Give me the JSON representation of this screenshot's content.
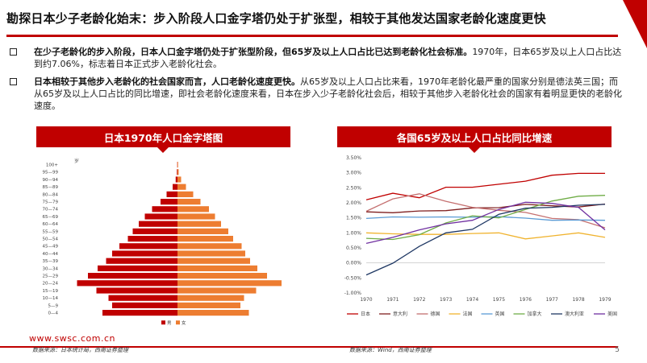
{
  "slide": {
    "title": "勘探日本少子老龄化始末：步入阶段人口金字塔仍处于扩张型，相较于其他发达国家老龄化速度更快",
    "bullets": [
      {
        "bold": "在少子老龄化的步入阶段，日本人口金字塔仍处于扩张型阶段，但65岁及以上人口占比已达到老龄化社会标准。",
        "text": "1970年，日本65岁及以上人口占比达到约7.06%，标志着日本正式步入老龄化社会。"
      },
      {
        "bold": "日本相较于其他步入老龄化的社会国家而言，人口老龄化速度更快。",
        "text": "从65岁及以上人口占比来看，1970年老龄化最严重的国家分别是德法英三国；而从65岁及以上人口占比的同比增速，即社会老龄化速度来看，日本在步入少子老龄化社会后，相较于其他步入老龄化社会的国家有着明显更快的老龄化速度。"
      }
    ],
    "page_number": "5",
    "footer_url": "www.swsc.com.cn"
  },
  "left_panel": {
    "title": "日本1970年人口金字塔图",
    "source": "数据来源：日本统计局，西南证券整理"
  },
  "right_panel": {
    "title": "各国65岁及以上人口占比同比增速",
    "source": "数据来源：Wind，西南证券整理"
  },
  "chart_data": [
    {
      "type": "bar",
      "subtype": "population-pyramid",
      "unit_label": "岁",
      "categories": [
        "100+",
        "95—99",
        "90—94",
        "85—89",
        "80—84",
        "75—79",
        "70—74",
        "65—69",
        "60—64",
        "55—59",
        "50—54",
        "45—49",
        "40—44",
        "35—39",
        "30—34",
        "25—29",
        "20—24",
        "15—19",
        "10—14",
        "5—9",
        "0—4"
      ],
      "series": [
        {
          "name": "男",
          "color": "#c00000",
          "values": [
            0.02,
            0.05,
            0.15,
            0.4,
            0.9,
            1.4,
            2.1,
            2.7,
            3.2,
            3.7,
            4.1,
            4.8,
            5.4,
            5.9,
            6.6,
            7.4,
            8.3,
            6.7,
            5.7,
            5.4,
            6.2
          ]
        },
        {
          "name": "女",
          "color": "#ed7d31",
          "values": [
            0.05,
            0.1,
            0.3,
            0.7,
            1.3,
            1.9,
            2.6,
            3.1,
            3.6,
            4.2,
            4.6,
            5.3,
            5.6,
            6.0,
            6.6,
            7.4,
            8.6,
            6.5,
            5.5,
            5.2,
            5.9
          ]
        }
      ]
    },
    {
      "type": "line",
      "x": [
        "1970",
        "1971",
        "1972",
        "1973",
        "1974",
        "1975",
        "1976",
        "1977",
        "1978",
        "1979"
      ],
      "ylim": [
        -0.01,
        0.035
      ],
      "yticks": [
        "3.50%",
        "3.00%",
        "2.50%",
        "2.00%",
        "1.50%",
        "1.00%",
        "0.50%",
        "0.00%",
        "-0.50%",
        "-1.00%"
      ],
      "series": [
        {
          "name": "日本",
          "color": "#c00000",
          "values": [
            0.021,
            0.0232,
            0.0217,
            0.0252,
            0.0252,
            0.0262,
            0.0272,
            0.0292,
            0.0298,
            0.0298
          ]
        },
        {
          "name": "意大利",
          "color": "#7f1f1f",
          "values": [
            0.017,
            0.0167,
            0.0173,
            0.0174,
            0.0183,
            0.0184,
            0.0195,
            0.019,
            0.0186,
            0.0196
          ]
        },
        {
          "name": "德国",
          "color": "#c46f6f",
          "values": [
            0.0172,
            0.0213,
            0.023,
            0.0205,
            0.0185,
            0.0175,
            0.0168,
            0.0148,
            0.0144,
            0.0117
          ]
        },
        {
          "name": "法国",
          "color": "#f0b32e",
          "values": [
            0.01,
            0.0097,
            0.0095,
            0.0095,
            0.0098,
            0.01,
            0.008,
            0.009,
            0.01,
            0.0085
          ]
        },
        {
          "name": "英国",
          "color": "#5b9bd5",
          "values": [
            0.0148,
            0.0153,
            0.0152,
            0.0153,
            0.0152,
            0.0154,
            0.0149,
            0.0142,
            0.0143,
            0.0142
          ]
        },
        {
          "name": "加拿大",
          "color": "#70ad47",
          "values": [
            0.0082,
            0.0078,
            0.0094,
            0.0133,
            0.0157,
            0.015,
            0.0178,
            0.0206,
            0.0222,
            0.0225
          ]
        },
        {
          "name": "澳大利亚",
          "color": "#1f3864",
          "values": [
            -0.004,
            -0.0001,
            0.0055,
            0.01,
            0.0112,
            0.0162,
            0.0182,
            0.0185,
            0.0192,
            0.0195
          ]
        },
        {
          "name": "美国",
          "color": "#7030a0",
          "values": [
            0.0065,
            0.0085,
            0.011,
            0.013,
            0.0142,
            0.0178,
            0.0202,
            0.0198,
            0.0185,
            0.011
          ]
        }
      ]
    }
  ]
}
